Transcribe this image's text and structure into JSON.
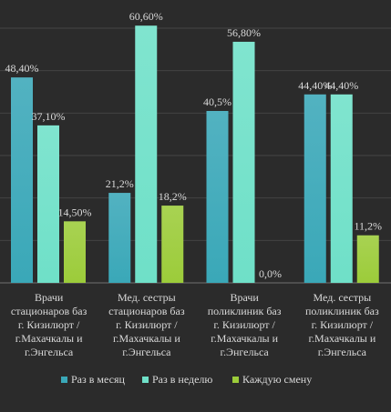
{
  "chart_data": {
    "type": "bar",
    "categories": [
      [
        "Врачи",
        "стационаров баз",
        "г. Кизилюрт /",
        "г.Махачкалы и",
        "г.Энгельса"
      ],
      [
        "Мед. сестры",
        "стационаров баз",
        "г. Кизилюрт /",
        "г.Махачкалы и",
        "г.Энгельса"
      ],
      [
        "Врачи",
        "поликлиник баз",
        "г. Кизилюрт /",
        "г.Махачкалы и",
        "г.Энгельса"
      ],
      [
        "Мед. сестры",
        "поликлиник баз",
        "г. Кизилюрт /",
        "г.Махачкалы и",
        "г.Энгельса"
      ]
    ],
    "series": [
      {
        "name": "Раз в месяц",
        "color": "#3aa8b8",
        "values": [
          48.4,
          21.2,
          40.5,
          44.4
        ],
        "labels": [
          "48,40%",
          "21,2%",
          "40,5%",
          "44,40%"
        ]
      },
      {
        "name": "Раз в неделю",
        "color": "#6fe0c8",
        "values": [
          37.1,
          60.6,
          56.8,
          44.4
        ],
        "labels": [
          "37,10%",
          "60,60%",
          "56,80%",
          "44,40%"
        ]
      },
      {
        "name": "Каждую смену",
        "color": "#9ccc3a",
        "values": [
          14.5,
          18.2,
          0.0,
          11.2
        ],
        "labels": [
          "14,50%",
          "18,2%",
          "0,0%",
          "11,2%"
        ]
      }
    ],
    "ylim": [
      0,
      60
    ],
    "grid": true,
    "legend_position": "bottom"
  }
}
